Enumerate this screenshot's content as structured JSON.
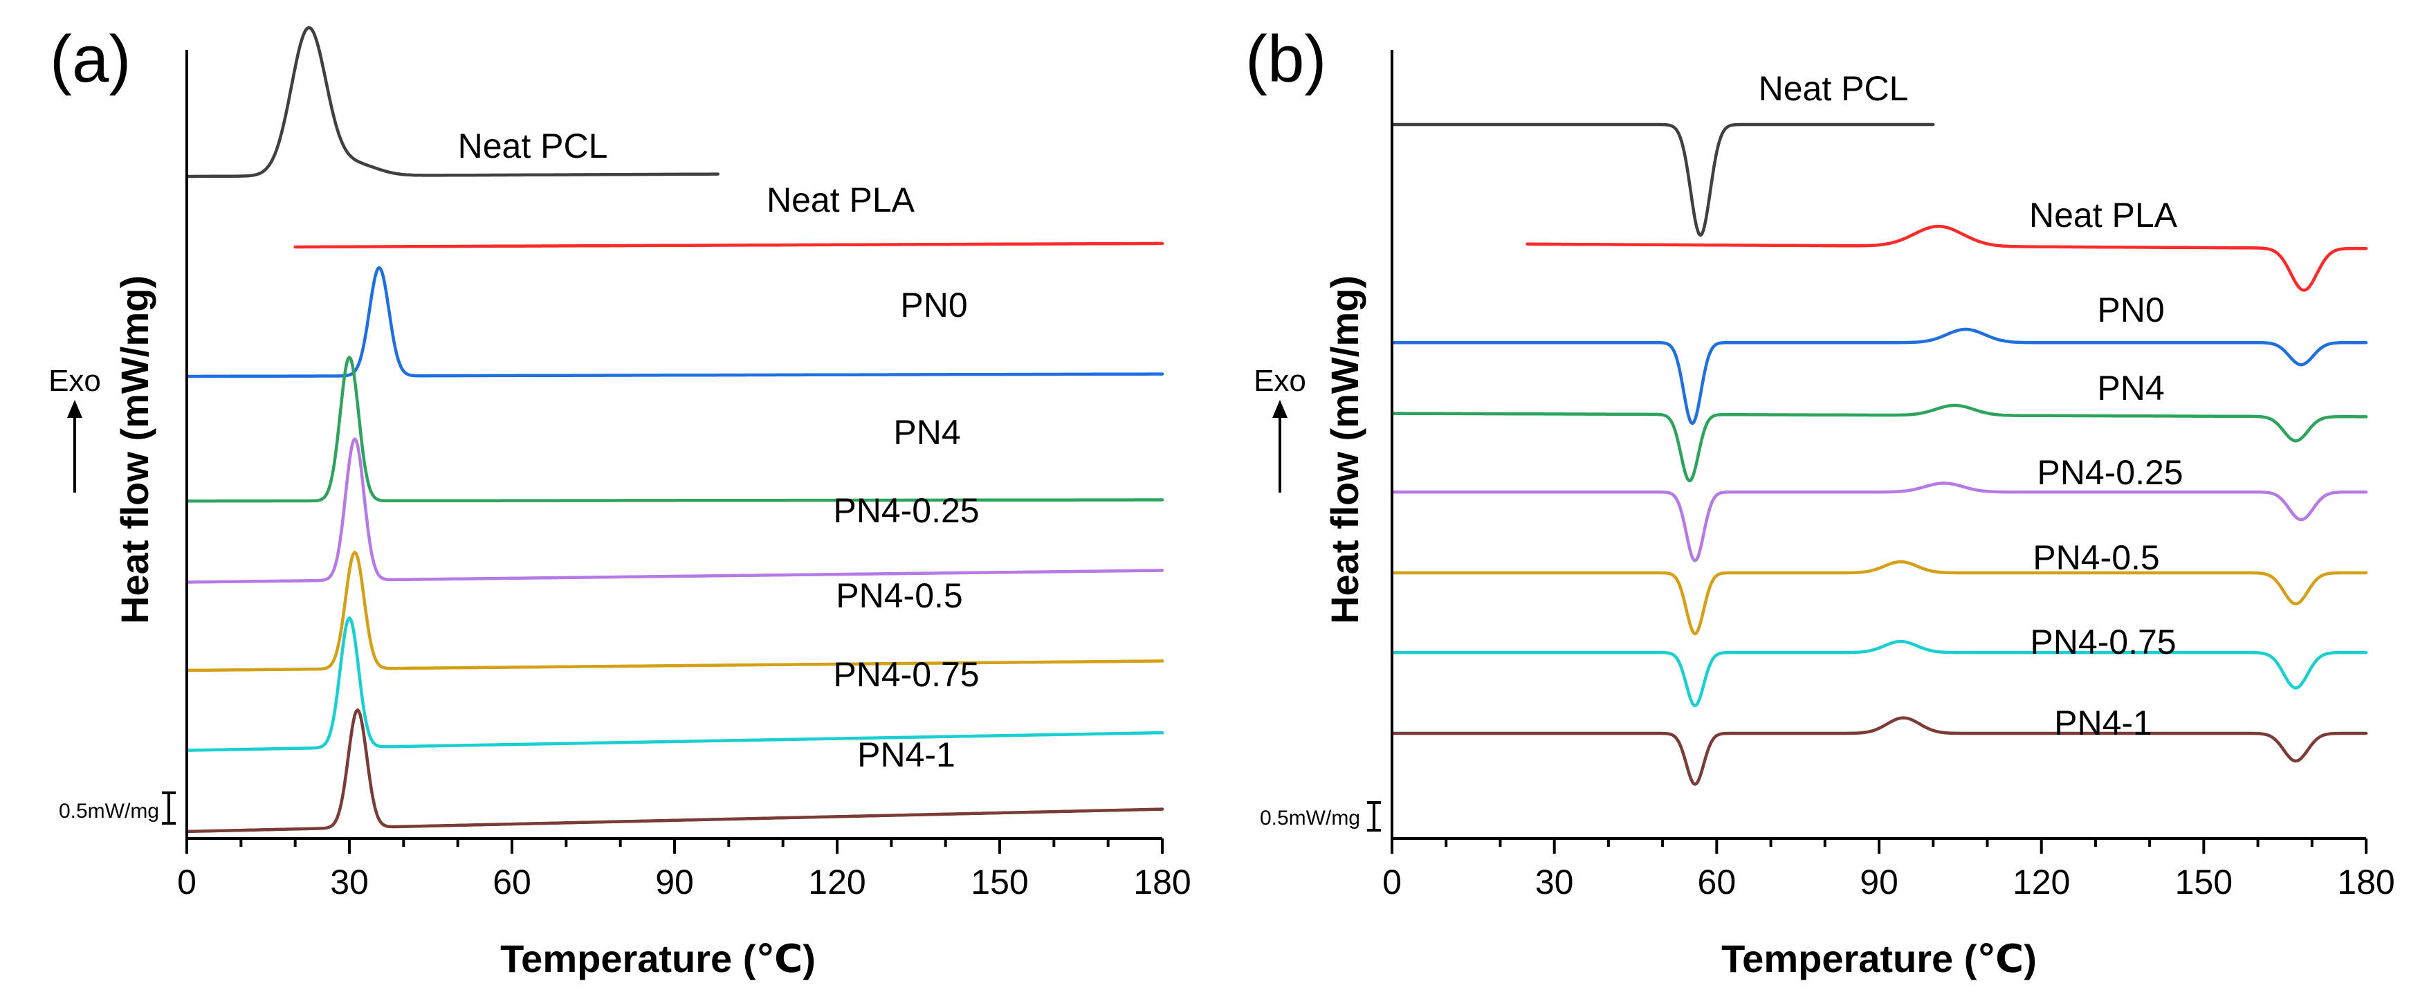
{
  "chart_data": [
    {
      "type": "line",
      "panel": "(a)",
      "xlabel": "Temperature (℃)",
      "ylabel": "Heat flow (mW/mg)",
      "xlim": [
        0,
        180
      ],
      "xticks": [
        "0",
        "30",
        "60",
        "90",
        "120",
        "150",
        "180"
      ],
      "exo_label": "Exo",
      "scale_label": "0.5mW/mg",
      "scale_value_mw_per_mg": 0.5,
      "series": [
        {
          "name": "Neat PCL",
          "color": "#404040",
          "baseline": 0.0,
          "x_range": [
            0,
            98
          ],
          "peaks": [
            {
              "x": 22.5,
              "h": 1.25,
              "w": 3.2
            },
            {
              "x": 31,
              "h": 0.1,
              "w": 4
            }
          ],
          "drift": 0.02
        },
        {
          "name": "Neat PLA",
          "color": "#ff2a2a",
          "baseline": -0.6,
          "x_range": [
            20,
            180
          ],
          "peaks": [],
          "drift": 0.03
        },
        {
          "name": "PN0",
          "color": "#1f6fe0",
          "baseline": -1.7,
          "x_range": [
            0,
            180
          ],
          "peaks": [
            {
              "x": 35.5,
              "h": 0.92,
              "w": 1.8
            }
          ],
          "drift": 0.02
        },
        {
          "name": "PN4",
          "color": "#2ea35c",
          "baseline": -2.76,
          "x_range": [
            0,
            180
          ],
          "peaks": [
            {
              "x": 30,
              "h": 1.22,
              "w": 1.7
            }
          ],
          "drift": 0.01
        },
        {
          "name": "PN4-0.25",
          "color": "#b57ae6",
          "baseline": -3.45,
          "x_range": [
            0,
            180
          ],
          "peaks": [
            {
              "x": 31,
              "h": 1.2,
              "w": 1.7
            }
          ],
          "drift": 0.1
        },
        {
          "name": "PN4-0.5",
          "color": "#d4a017",
          "baseline": -4.2,
          "x_range": [
            0,
            180
          ],
          "peaks": [
            {
              "x": 31,
              "h": 0.99,
              "w": 1.7
            }
          ],
          "drift": 0.08
        },
        {
          "name": "PN4-0.75",
          "color": "#19cfd2",
          "baseline": -4.88,
          "x_range": [
            0,
            180
          ],
          "peaks": [
            {
              "x": 30,
              "h": 1.1,
              "w": 1.7
            }
          ],
          "drift": 0.15
        },
        {
          "name": "PN4-1",
          "color": "#7b3b36",
          "baseline": -5.57,
          "x_range": [
            0,
            180
          ],
          "peaks": [
            {
              "x": 31.5,
              "h": 1.0,
              "w": 1.7
            }
          ],
          "drift": 0.19
        }
      ]
    },
    {
      "type": "line",
      "panel": "(b)",
      "xlabel": "Temperature (℃)",
      "ylabel": "Heat flow (mW/mg)",
      "xlim": [
        0,
        180
      ],
      "xticks": [
        "0",
        "30",
        "60",
        "90",
        "120",
        "150",
        "180"
      ],
      "exo_label": "Exo",
      "scale_label": "0.5mW/mg",
      "scale_value_mw_per_mg": 0.5,
      "series": [
        {
          "name": "Neat PCL",
          "color": "#404040",
          "baseline": 0.0,
          "x_range": [
            0,
            100
          ],
          "peaks": [
            {
              "x": 57,
              "h": -1.0,
              "w": 1.8
            }
          ],
          "drift": 0.0
        },
        {
          "name": "Neat PLA",
          "color": "#ff2a2a",
          "baseline": -1.08,
          "x_range": [
            25,
            180
          ],
          "peaks": [
            {
              "x": 101,
              "h": 0.18,
              "w": 4.5
            },
            {
              "x": 168.5,
              "h": -0.38,
              "w": 2.4
            }
          ],
          "drift": -0.04
        },
        {
          "name": "PN0",
          "color": "#1f6fe0",
          "baseline": -1.97,
          "x_range": [
            0,
            180
          ],
          "peaks": [
            {
              "x": 55.5,
              "h": -0.73,
              "w": 1.6
            },
            {
              "x": 106,
              "h": 0.12,
              "w": 3.5
            },
            {
              "x": 168,
              "h": -0.2,
              "w": 2.2
            }
          ],
          "drift": 0.0
        },
        {
          "name": "PN4",
          "color": "#2ea35c",
          "baseline": -2.61,
          "x_range": [
            0,
            180
          ],
          "peaks": [
            {
              "x": 55,
              "h": -0.6,
              "w": 1.6
            },
            {
              "x": 104,
              "h": 0.09,
              "w": 3.5
            },
            {
              "x": 167,
              "h": -0.22,
              "w": 2.2
            }
          ],
          "drift": -0.03
        },
        {
          "name": "PN4-0.25",
          "color": "#b57ae6",
          "baseline": -3.32,
          "x_range": [
            0,
            180
          ],
          "peaks": [
            {
              "x": 56,
              "h": -0.62,
              "w": 1.6
            },
            {
              "x": 102,
              "h": 0.08,
              "w": 3.5
            },
            {
              "x": 168,
              "h": -0.25,
              "w": 2.2
            }
          ],
          "drift": 0.0
        },
        {
          "name": "PN4-0.5",
          "color": "#d4a017",
          "baseline": -4.05,
          "x_range": [
            0,
            180
          ],
          "peaks": [
            {
              "x": 56,
              "h": -0.55,
              "w": 1.6
            },
            {
              "x": 94,
              "h": 0.1,
              "w": 3.0
            },
            {
              "x": 167,
              "h": -0.28,
              "w": 2.2
            }
          ],
          "drift": 0.0
        },
        {
          "name": "PN4-0.75",
          "color": "#19cfd2",
          "baseline": -4.77,
          "x_range": [
            0,
            180
          ],
          "peaks": [
            {
              "x": 56,
              "h": -0.48,
              "w": 1.6
            },
            {
              "x": 94,
              "h": 0.1,
              "w": 3.0
            },
            {
              "x": 167,
              "h": -0.32,
              "w": 2.2
            }
          ],
          "drift": 0.0
        },
        {
          "name": "PN4-1",
          "color": "#7b3b36",
          "baseline": -5.5,
          "x_range": [
            0,
            180
          ],
          "peaks": [
            {
              "x": 56,
              "h": -0.46,
              "w": 1.6
            },
            {
              "x": 94.5,
              "h": 0.14,
              "w": 3.0
            },
            {
              "x": 167,
              "h": -0.25,
              "w": 2.2
            }
          ],
          "drift": 0.0
        }
      ]
    }
  ]
}
